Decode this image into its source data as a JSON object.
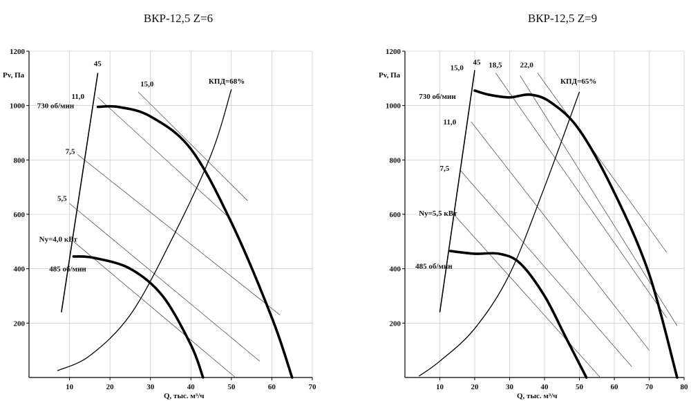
{
  "chart_data": [
    {
      "type": "line",
      "title": "ВКР-12,5  Z=6",
      "xlabel": "Q, тыс. м³/ч",
      "ylabel": "Pv, Па",
      "xlim": [
        0,
        70
      ],
      "ylim": [
        0,
        1200
      ],
      "xticks": [
        10,
        20,
        30,
        40,
        50,
        60,
        70
      ],
      "yticks": [
        200,
        400,
        600,
        800,
        1000,
        1200
      ],
      "grid": true,
      "pressure_curves": [
        {
          "name": "730 об/мин",
          "points": [
            [
              17,
              995
            ],
            [
              22,
              995
            ],
            [
              30,
              960
            ],
            [
              40,
              840
            ],
            [
              50,
              570
            ],
            [
              60,
              220
            ],
            [
              65,
              0
            ]
          ]
        },
        {
          "name": "485 об/мин",
          "points": [
            [
              11,
              445
            ],
            [
              16,
              440
            ],
            [
              25,
              400
            ],
            [
              33,
              300
            ],
            [
              40,
              120
            ],
            [
              43,
              0
            ]
          ]
        }
      ],
      "efficiency_curve": {
        "label": "КПД=68%",
        "points": [
          [
            7,
            25
          ],
          [
            15,
            80
          ],
          [
            25,
            230
          ],
          [
            35,
            500
          ],
          [
            45,
            820
          ],
          [
            50,
            1060
          ]
        ]
      },
      "power_lines": [
        {
          "label": "15,0",
          "points": [
            [
              27,
              1050
            ],
            [
              54,
              650
            ]
          ]
        },
        {
          "label": "11,0",
          "points": [
            [
              17,
              1030
            ],
            [
              50,
              580
            ]
          ]
        },
        {
          "label": "7,5",
          "points": [
            [
              12,
              820
            ],
            [
              62,
              230
            ]
          ]
        },
        {
          "label": "5,5",
          "points": [
            [
              10,
              640
            ],
            [
              57,
              60
            ]
          ]
        },
        {
          "label": "Ny=4,0 кВт",
          "points": [
            [
              11,
              500
            ],
            [
              51,
              0
            ]
          ]
        }
      ],
      "efficiency_boundary": {
        "label": "45",
        "points": [
          [
            8,
            240
          ],
          [
            17,
            1120
          ]
        ]
      },
      "label_positions_hint": "lines for rpm curves labeled at left"
    },
    {
      "type": "line",
      "title": "ВКР-12,5  Z=9",
      "xlabel": "Q, тыс. м³/ч",
      "ylabel": "Pv, Па",
      "xlim": [
        0,
        80
      ],
      "ylim": [
        0,
        1200
      ],
      "xticks": [
        10,
        20,
        30,
        40,
        50,
        60,
        70,
        80
      ],
      "yticks": [
        200,
        400,
        600,
        800,
        1000,
        1200
      ],
      "grid": true,
      "pressure_curves": [
        {
          "name": "730 об/мин",
          "points": [
            [
              20,
              1055
            ],
            [
              24,
              1040
            ],
            [
              30,
              1030
            ],
            [
              36,
              1040
            ],
            [
              42,
              1010
            ],
            [
              50,
              910
            ],
            [
              60,
              680
            ],
            [
              70,
              380
            ],
            [
              78,
              0
            ]
          ]
        },
        {
          "name": "485 об/мин",
          "points": [
            [
              13,
              465
            ],
            [
              20,
              455
            ],
            [
              27,
              455
            ],
            [
              33,
              420
            ],
            [
              40,
              300
            ],
            [
              46,
              150
            ],
            [
              52,
              0
            ]
          ]
        }
      ],
      "efficiency_curve": {
        "label": "КПД=65%",
        "points": [
          [
            4,
            5
          ],
          [
            10,
            60
          ],
          [
            20,
            180
          ],
          [
            30,
            380
          ],
          [
            40,
            700
          ],
          [
            50,
            1050
          ]
        ]
      },
      "power_lines": [
        {
          "label": "22,0",
          "points": [
            [
              38,
              1120
            ],
            [
              75,
              460
            ]
          ]
        },
        {
          "label": "18,5",
          "points": [
            [
              33,
              1110
            ],
            [
              78,
              190
            ]
          ]
        },
        {
          "label": "15,0",
          "points": [
            [
              26,
              1120
            ],
            [
              75,
              220
            ]
          ]
        },
        {
          "label": "11,0",
          "points": [
            [
              19,
              940
            ],
            [
              70,
              100
            ]
          ]
        },
        {
          "label": "7,5",
          "points": [
            [
              16,
              760
            ],
            [
              65,
              40
            ]
          ]
        },
        {
          "label": "Ny=5,5 кВт",
          "points": [
            [
              14,
              600
            ],
            [
              56,
              0
            ]
          ]
        }
      ],
      "efficiency_boundary": {
        "label": "45",
        "points": [
          [
            10,
            240
          ],
          [
            20,
            1130
          ]
        ]
      }
    }
  ],
  "labels": {
    "rpm_high": "730 об/мин",
    "rpm_low": "485 об/мин"
  }
}
